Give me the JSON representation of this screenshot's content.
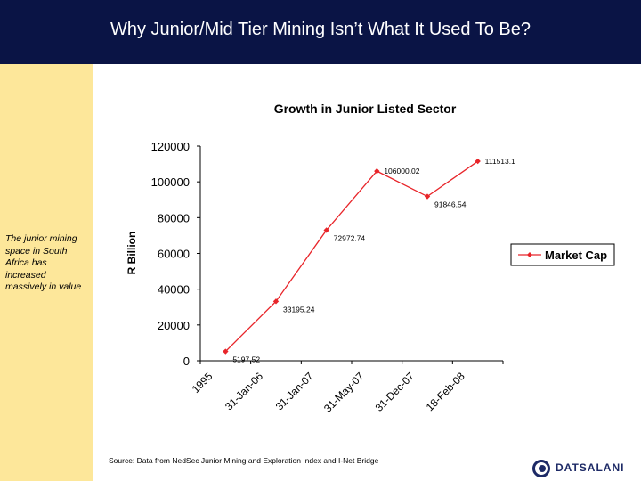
{
  "header": {
    "title": "Why Junior/Mid Tier Mining Isn’t What It Used To Be?"
  },
  "sidebar": {
    "note": "The junior mining space in South Africa has increased massively in value"
  },
  "chart_data": {
    "type": "line",
    "title": "Growth in Junior Listed Sector",
    "xlabel": "",
    "ylabel": "R Billion",
    "categories": [
      "1995",
      "31-Jan-06",
      "31-Jan-07",
      "31-May-07",
      "31-Dec-07",
      "18-Feb-08"
    ],
    "series": [
      {
        "name": "Market Cap",
        "values": [
          5197.52,
          33195.24,
          72972.74,
          106000.02,
          91846.54,
          111513.1
        ],
        "labels": [
          "5197.52",
          "33195.24",
          "72972.74",
          "106000.02",
          "91846.54",
          "111513.1"
        ]
      }
    ],
    "ylim": [
      0,
      120000
    ],
    "yticks": [
      0,
      20000,
      40000,
      60000,
      80000,
      100000,
      120000
    ],
    "grid": false,
    "legend": "right",
    "colors": {
      "line": "#e8252a",
      "marker": "#e8252a"
    }
  },
  "source": "Source: Data from NedSec Junior Mining and Exploration Index and I-Net Bridge",
  "logo": {
    "name": "DATSALANI",
    "icon": "datsalani-logo-icon"
  }
}
